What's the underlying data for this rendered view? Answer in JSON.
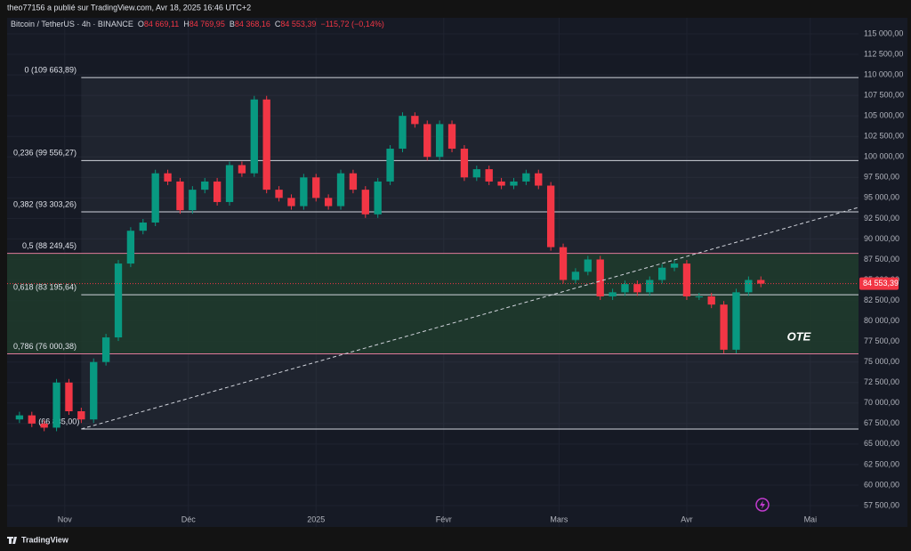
{
  "header": {
    "publisher": "theo77156 a publié sur TradingView.com, Avr 18, 2025 16:46 UTC+2"
  },
  "footer": {
    "brand": "TradingView"
  },
  "chart_data": {
    "type": "candlestick",
    "title": "Bitcoin / TetherUS · 4h · BINANCE",
    "ohlc": [
      {
        "key": "O",
        "value": 84669.11,
        "label": "84 669,11"
      },
      {
        "key": "H",
        "value": 84769.95,
        "label": "84 769,95"
      },
      {
        "key": "B",
        "value": 84368.16,
        "label": "84 368,16"
      },
      {
        "key": "C",
        "value": 84553.39,
        "label": "84 553,39"
      }
    ],
    "change": {
      "value": -115.72,
      "label": "−115,72 (−0,14%)"
    },
    "last_price": {
      "value": 84553.39,
      "label": "84 553,39"
    },
    "up_color": "#089981",
    "down_color": "#f23645",
    "x": [
      -14,
      -11,
      -8,
      -5,
      -2,
      1,
      4,
      7,
      10,
      13,
      16,
      19,
      22,
      25,
      28,
      31,
      34,
      37,
      40,
      43,
      46,
      49,
      52,
      55,
      58,
      61,
      64,
      67,
      70,
      73,
      76,
      79,
      82,
      85,
      88,
      91,
      94,
      97,
      100,
      103,
      106,
      109,
      112,
      115,
      118,
      121,
      124,
      127,
      130,
      133,
      136,
      139,
      142,
      145,
      148,
      151,
      154,
      157,
      160,
      163,
      166,
      169
    ],
    "values": [
      68000,
      68500,
      67500,
      67000,
      72500,
      69000,
      68000,
      75000,
      78000,
      87000,
      91000,
      92000,
      98000,
      97000,
      93500,
      96000,
      97000,
      94500,
      99000,
      98000,
      107000,
      96000,
      95000,
      94000,
      97500,
      95000,
      94000,
      98000,
      96000,
      93000,
      97000,
      101000,
      105000,
      104000,
      100000,
      104000,
      101000,
      97500,
      98500,
      97000,
      96500,
      97000,
      98000,
      96500,
      89000,
      85000,
      86000,
      87500,
      83000,
      83500,
      84500,
      83500,
      85000,
      86500,
      87000,
      83000,
      83000,
      82000,
      76500,
      83500,
      85000,
      84553.39
    ],
    "xlim": [
      -14,
      192.7
    ],
    "xticks": [
      {
        "value": 0,
        "label": "Nov"
      },
      {
        "value": 30,
        "label": "Déc"
      },
      {
        "value": 61,
        "label": "2025"
      },
      {
        "value": 92,
        "label": "Févr"
      },
      {
        "value": 120,
        "label": "Mars"
      },
      {
        "value": 151,
        "label": "Avr"
      },
      {
        "value": 181,
        "label": "Mai"
      }
    ],
    "ylim": [
      54896,
      115868
    ],
    "yticks": [
      {
        "value": 57500,
        "label": "57 500,00"
      },
      {
        "value": 60000,
        "label": "60 000,00"
      },
      {
        "value": 62500,
        "label": "62 500,00"
      },
      {
        "value": 65000,
        "label": "65 000,00"
      },
      {
        "value": 67500,
        "label": "67 500,00"
      },
      {
        "value": 70000,
        "label": "70 000,00"
      },
      {
        "value": 72500,
        "label": "72 500,00"
      },
      {
        "value": 75000,
        "label": "75 000,00"
      },
      {
        "value": 77500,
        "label": "77 500,00"
      },
      {
        "value": 80000,
        "label": "80 000,00"
      },
      {
        "value": 82500,
        "label": "82 500,00"
      },
      {
        "value": 85000,
        "label": "85 000,00"
      },
      {
        "value": 87500,
        "label": "87 500,00"
      },
      {
        "value": 90000,
        "label": "90 000,00"
      },
      {
        "value": 92500,
        "label": "92 500,00"
      },
      {
        "value": 95000,
        "label": "95 000,00"
      },
      {
        "value": 97500,
        "label": "97 500,00"
      },
      {
        "value": 100000,
        "label": "100 000,00"
      },
      {
        "value": 102500,
        "label": "102 500,00"
      },
      {
        "value": 105000,
        "label": "105 000,00"
      },
      {
        "value": 107500,
        "label": "107 500,00"
      },
      {
        "value": 110000,
        "label": "110 000,00"
      },
      {
        "value": 112500,
        "label": "112 500,00"
      },
      {
        "value": 115000,
        "label": "115 000,00"
      }
    ],
    "fib": {
      "start_x": 4,
      "levels": [
        {
          "value": 109663.89,
          "label": "0 (109 663,89)"
        },
        {
          "value": 99556.27,
          "label": "0,236 (99 556,27)"
        },
        {
          "value": 93303.26,
          "label": "0,382 (93 303,26)"
        },
        {
          "value": 88249.45,
          "label": "0,5 (88 249,45)"
        },
        {
          "value": 83195.64,
          "label": "0,618 (83 195,64)"
        },
        {
          "value": 76000.38,
          "label": "0,786 (76 000,38)"
        },
        {
          "value": 66835.0,
          "label": "(66 835,00)"
        }
      ]
    },
    "ote": {
      "label": "OTE",
      "color": "#1e3b2b"
    },
    "trendline": {
      "x": [
        4,
        192.7
      ],
      "values": [
        66835,
        93844
      ]
    }
  }
}
